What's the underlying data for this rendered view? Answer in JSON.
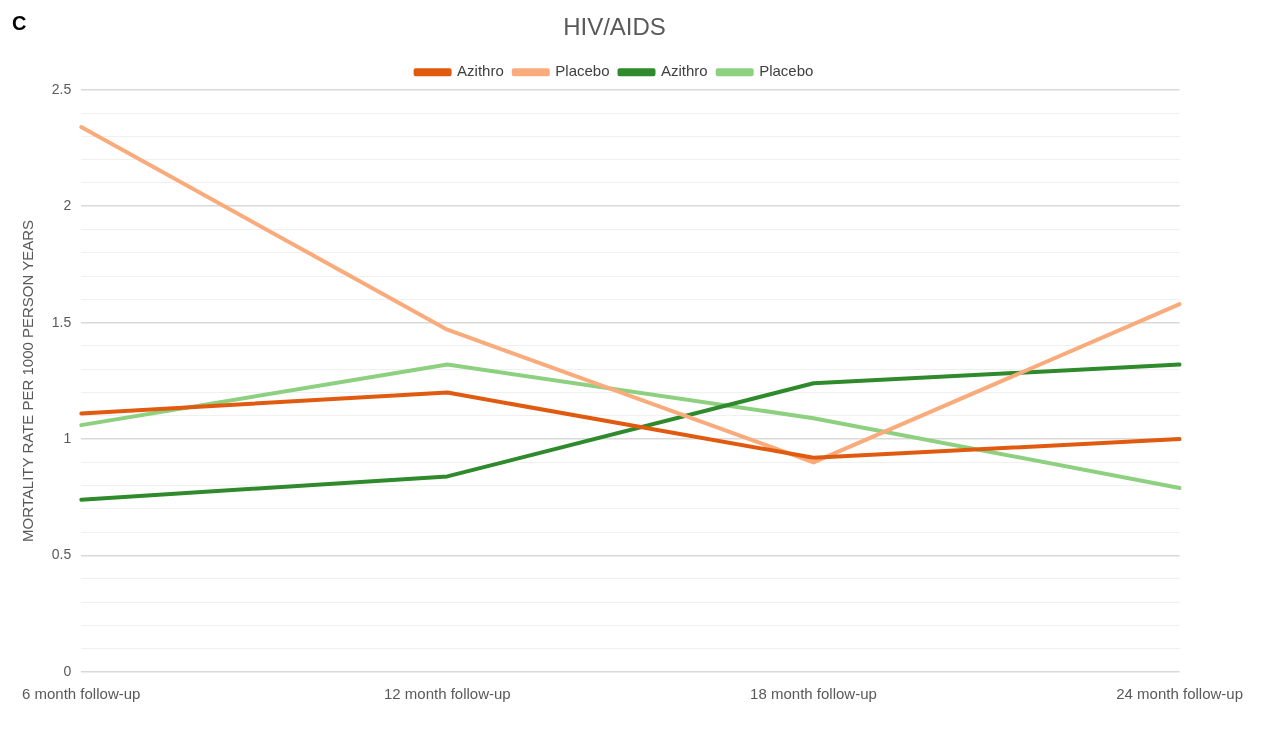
{
  "chart_data": {
    "type": "line",
    "title": "HIV/AIDS",
    "annotations": [
      "C"
    ],
    "ylabel": "MORTALITY RATE PER 1000 PERSON YEARS",
    "categories": [
      "6 month follow-up",
      "12 month follow-up",
      "18 month follow-up",
      "24 month follow-up"
    ],
    "series": [
      {
        "name": "Azithro",
        "color": "#e05a10",
        "values": [
          1.11,
          1.2,
          0.92,
          1.0
        ]
      },
      {
        "name": "Placebo",
        "color": "#f9ab7b",
        "values": [
          2.34,
          1.47,
          0.9,
          1.58
        ]
      },
      {
        "name": "Azithro",
        "color": "#2e8a2a",
        "values": [
          0.74,
          0.84,
          1.24,
          1.32
        ]
      },
      {
        "name": "Placebo",
        "color": "#8dd07f",
        "values": [
          1.06,
          1.32,
          1.09,
          0.79
        ]
      }
    ],
    "ylim": [
      0,
      2.5
    ],
    "yticks": [
      0,
      {
        "value": 0.1,
        "label": null
      },
      {
        "value": 0.2,
        "label": null
      },
      {
        "value": 0.3,
        "label": null
      },
      {
        "value": 0.4,
        "label": null
      },
      0.5,
      {
        "value": 0.6,
        "label": null
      },
      {
        "value": 0.7,
        "label": null
      },
      {
        "value": 0.8,
        "label": null
      },
      {
        "value": 0.9,
        "label": null
      },
      1,
      {
        "value": 1.1,
        "label": null
      },
      {
        "value": 1.2,
        "label": null
      },
      {
        "value": 1.3,
        "label": null
      },
      {
        "value": 1.4,
        "label": null
      },
      1.5,
      {
        "value": 1.6,
        "label": null
      },
      {
        "value": 1.7,
        "label": null
      },
      {
        "value": 1.8,
        "label": null
      },
      {
        "value": 1.9,
        "label": null
      },
      2,
      {
        "value": 2.1,
        "label": null
      },
      {
        "value": 2.2,
        "label": null
      },
      {
        "value": 2.3,
        "label": null
      },
      {
        "value": 2.4,
        "label": null
      },
      2.5
    ],
    "grid": "y",
    "legend": "top",
    "marker": "none",
    "line_style": "solid"
  }
}
